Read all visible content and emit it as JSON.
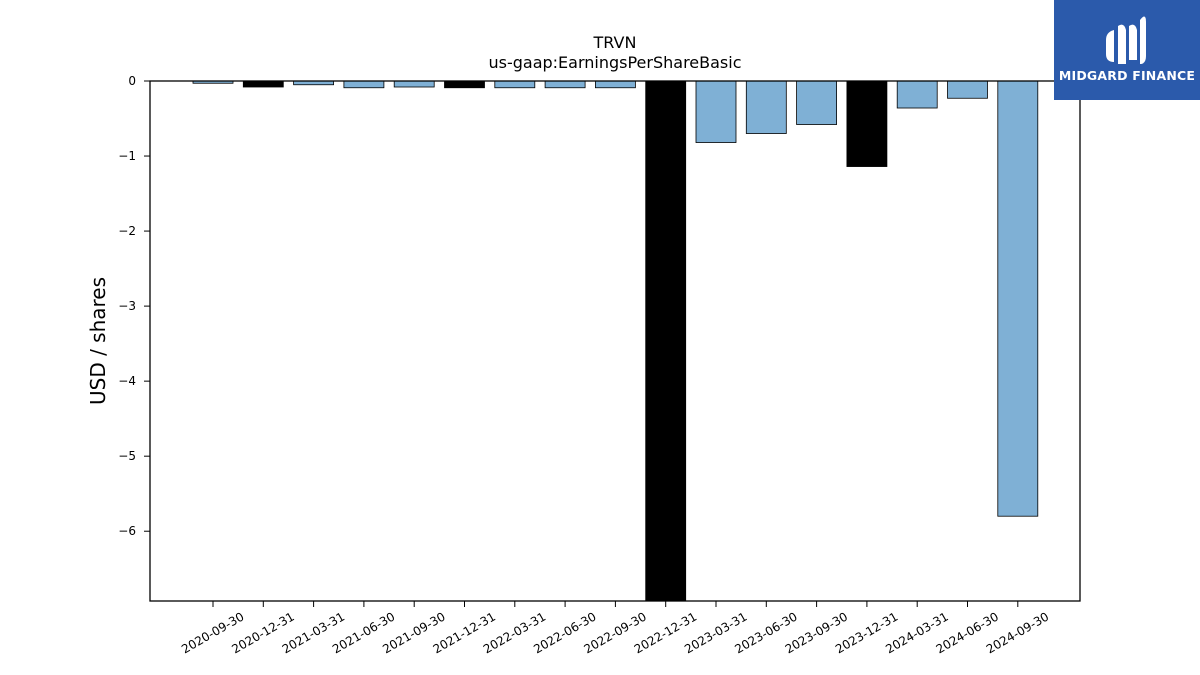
{
  "brand": {
    "name": "MIDGARD FINANCE",
    "background": "#2b5aab"
  },
  "chart_data": {
    "type": "bar",
    "title": "TRVN",
    "subtitle": "us-gaap:EarningsPerShareBasic",
    "xlabel": "",
    "ylabel": "USD / shares",
    "ylim": [
      -6.93,
      0
    ],
    "yticks": [
      0,
      -1,
      -2,
      -3,
      -4,
      -5,
      -6
    ],
    "ytick_labels": [
      "0",
      "−1",
      "−2",
      "−3",
      "−4",
      "−5",
      "−6"
    ],
    "grid": false,
    "legend": "none",
    "colors": {
      "quarter": "#7fb0d5",
      "annual": "#000000",
      "edge": "#000000"
    },
    "categories": [
      "2020-09-30",
      "2020-12-31",
      "2021-03-31",
      "2021-06-30",
      "2021-09-30",
      "2021-12-31",
      "2022-03-31",
      "2022-06-30",
      "2022-09-30",
      "2022-12-31",
      "2023-03-31",
      "2023-06-30",
      "2023-09-30",
      "2023-12-31",
      "2024-03-31",
      "2024-06-30",
      "2024-09-30"
    ],
    "values": [
      -0.03,
      -0.08,
      -0.05,
      -0.09,
      -0.08,
      -0.09,
      -0.09,
      -0.09,
      -0.09,
      -6.93,
      -0.82,
      -0.7,
      -0.58,
      -1.14,
      -0.36,
      -0.23,
      -5.8
    ],
    "bar_kind": [
      "quarter",
      "annual",
      "quarter",
      "quarter",
      "quarter",
      "annual",
      "quarter",
      "quarter",
      "quarter",
      "annual",
      "quarter",
      "quarter",
      "quarter",
      "annual",
      "quarter",
      "quarter",
      "quarter"
    ]
  }
}
